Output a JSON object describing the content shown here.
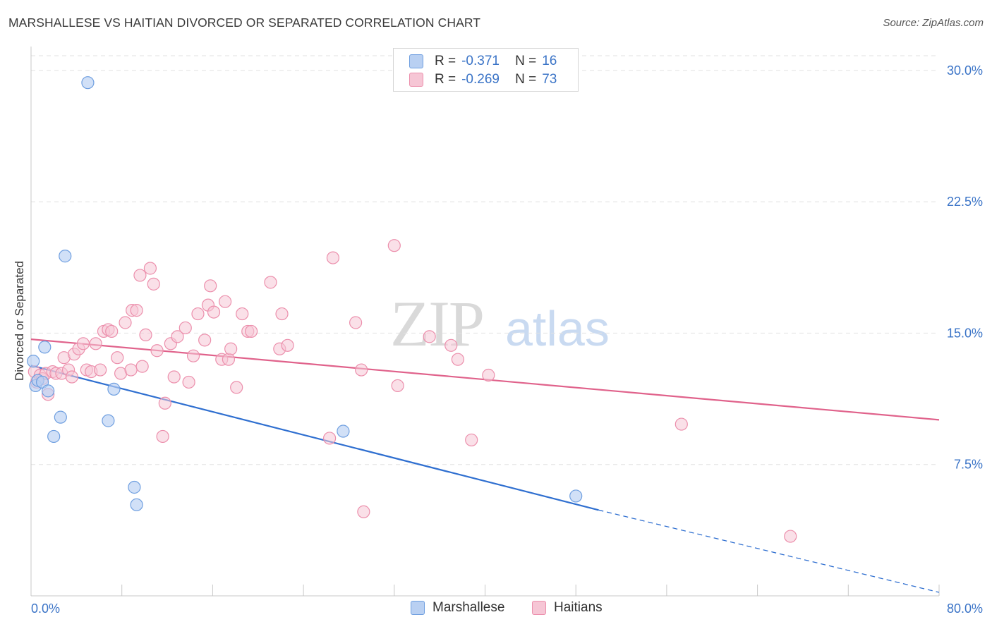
{
  "title": "MARSHALLESE VS HAITIAN DIVORCED OR SEPARATED CORRELATION CHART",
  "source": "Source: ZipAtlas.com",
  "colors": {
    "marshallese": "#6f9fe0",
    "marshallese_fill": "#b9d0f2",
    "marshallese_line": "#2f6fd0",
    "haitians": "#ec8fac",
    "haitians_fill": "#f6c6d5",
    "haitians_line": "#e0628b",
    "axis_label": "#3b74c7",
    "grid": "#e2e2e2"
  },
  "legend": {
    "rows": [
      {
        "r_label": "R =",
        "r_value": "-0.371",
        "n_label": "N =",
        "n_value": "16"
      },
      {
        "r_label": "R =",
        "r_value": "-0.269",
        "n_label": "N =",
        "n_value": "73"
      }
    ]
  },
  "chart_data": {
    "type": "scatter",
    "title": "MARSHALLESE VS HAITIAN DIVORCED OR SEPARATED CORRELATION CHART",
    "ylabel": "Divorced or Separated",
    "xlabel": "",
    "xlim": [
      0,
      80
    ],
    "ylim": [
      0,
      31.2
    ],
    "x_tick_labels": [
      "0.0%",
      "80.0%"
    ],
    "y_ticks": [
      7.5,
      15.0,
      22.5,
      30.0
    ],
    "y_tick_labels": [
      "7.5%",
      "15.0%",
      "22.5%",
      "30.0%"
    ],
    "grid": true,
    "legend_placement": "bottom",
    "watermark": "ZIPatlas",
    "series": [
      {
        "name": "Marshallese",
        "r": -0.371,
        "n": 16,
        "points": [
          [
            0.2,
            13.4
          ],
          [
            0.4,
            12.0
          ],
          [
            0.6,
            12.3
          ],
          [
            1.0,
            12.2
          ],
          [
            1.2,
            14.2
          ],
          [
            1.5,
            11.7
          ],
          [
            2.0,
            9.1
          ],
          [
            2.6,
            10.2
          ],
          [
            3.0,
            19.4
          ],
          [
            5.0,
            29.3
          ],
          [
            6.8,
            10.0
          ],
          [
            7.3,
            11.8
          ],
          [
            9.1,
            6.2
          ],
          [
            9.3,
            5.2
          ],
          [
            27.5,
            9.4
          ],
          [
            48.0,
            5.7
          ]
        ],
        "trend": {
          "x0": 0,
          "y0": 13.15,
          "x1": 50,
          "y1": 4.9,
          "dashed_to_x": 80,
          "dashed_to_y": 0.2
        }
      },
      {
        "name": "Haitians",
        "r": -0.269,
        "n": 73,
        "points": [
          [
            0.3,
            12.8
          ],
          [
            0.5,
            12.2
          ],
          [
            0.8,
            12.6
          ],
          [
            1.0,
            12.4
          ],
          [
            1.3,
            12.7
          ],
          [
            1.5,
            11.5
          ],
          [
            1.9,
            12.8
          ],
          [
            2.2,
            12.7
          ],
          [
            2.7,
            12.7
          ],
          [
            2.9,
            13.6
          ],
          [
            3.3,
            12.9
          ],
          [
            3.6,
            12.5
          ],
          [
            3.8,
            13.8
          ],
          [
            4.2,
            14.1
          ],
          [
            4.6,
            14.4
          ],
          [
            4.9,
            12.9
          ],
          [
            5.3,
            12.8
          ],
          [
            5.7,
            14.4
          ],
          [
            6.1,
            12.9
          ],
          [
            6.4,
            15.1
          ],
          [
            6.8,
            15.2
          ],
          [
            7.1,
            15.1
          ],
          [
            7.6,
            13.6
          ],
          [
            7.9,
            12.7
          ],
          [
            8.3,
            15.6
          ],
          [
            8.8,
            12.9
          ],
          [
            8.9,
            16.3
          ],
          [
            9.3,
            16.3
          ],
          [
            9.6,
            18.3
          ],
          [
            9.8,
            13.1
          ],
          [
            10.1,
            14.9
          ],
          [
            10.5,
            18.7
          ],
          [
            10.8,
            17.8
          ],
          [
            11.1,
            14.0
          ],
          [
            11.6,
            9.1
          ],
          [
            11.8,
            11.0
          ],
          [
            12.3,
            14.4
          ],
          [
            12.6,
            12.5
          ],
          [
            12.9,
            14.8
          ],
          [
            13.6,
            15.3
          ],
          [
            13.9,
            12.2
          ],
          [
            14.3,
            13.7
          ],
          [
            14.7,
            16.1
          ],
          [
            15.3,
            14.6
          ],
          [
            15.6,
            16.6
          ],
          [
            15.8,
            17.7
          ],
          [
            16.1,
            16.2
          ],
          [
            16.8,
            13.5
          ],
          [
            17.1,
            16.8
          ],
          [
            17.4,
            13.5
          ],
          [
            17.6,
            14.1
          ],
          [
            18.1,
            11.9
          ],
          [
            18.6,
            16.1
          ],
          [
            19.1,
            15.1
          ],
          [
            19.4,
            15.1
          ],
          [
            21.1,
            17.9
          ],
          [
            21.9,
            14.1
          ],
          [
            22.1,
            16.1
          ],
          [
            22.6,
            14.3
          ],
          [
            26.3,
            9.0
          ],
          [
            26.6,
            19.3
          ],
          [
            28.6,
            15.6
          ],
          [
            29.1,
            12.9
          ],
          [
            29.3,
            4.8
          ],
          [
            32.0,
            20.0
          ],
          [
            32.3,
            12.0
          ],
          [
            35.1,
            14.8
          ],
          [
            37.0,
            14.3
          ],
          [
            37.6,
            13.5
          ],
          [
            38.8,
            8.9
          ],
          [
            40.3,
            12.6
          ],
          [
            57.3,
            9.8
          ],
          [
            66.9,
            3.4
          ]
        ],
        "trend": {
          "x0": 0,
          "y0": 14.65,
          "x1": 80,
          "y1": 10.05
        }
      }
    ]
  }
}
